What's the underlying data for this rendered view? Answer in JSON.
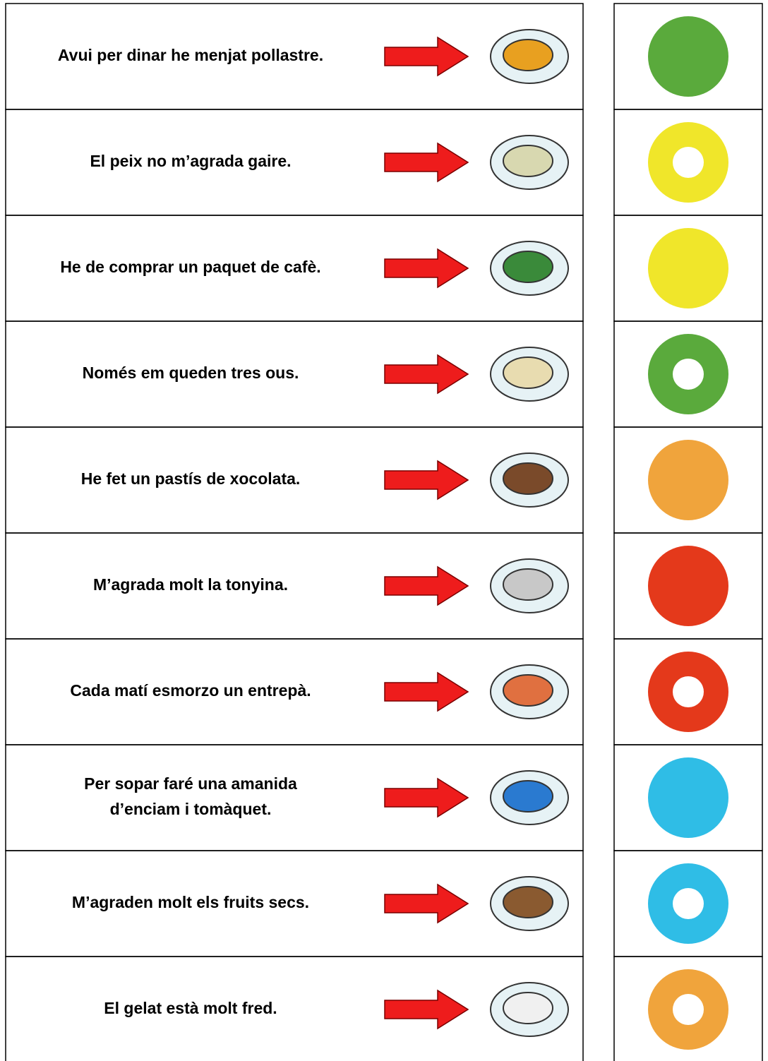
{
  "rows": [
    {
      "lines": [
        "Avui per dinar he menjat pollastre."
      ]
    },
    {
      "lines": [
        "El peix no m’agrada gaire."
      ]
    },
    {
      "lines": [
        "He de comprar un paquet de cafè."
      ]
    },
    {
      "lines": [
        "Només em queden tres ous."
      ]
    },
    {
      "lines": [
        "He fet un pastís de xocolata."
      ]
    },
    {
      "lines": [
        "M’agrada molt la tonyina."
      ]
    },
    {
      "lines": [
        "Cada matí esmorzo un entrepà."
      ]
    },
    {
      "lines": [
        "Per sopar faré una amanida",
        "d’enciam i tomàquet."
      ]
    },
    {
      "lines": [
        "M’agraden molt els fruits secs."
      ]
    },
    {
      "lines": [
        "El gelat està molt fred."
      ]
    }
  ]
}
